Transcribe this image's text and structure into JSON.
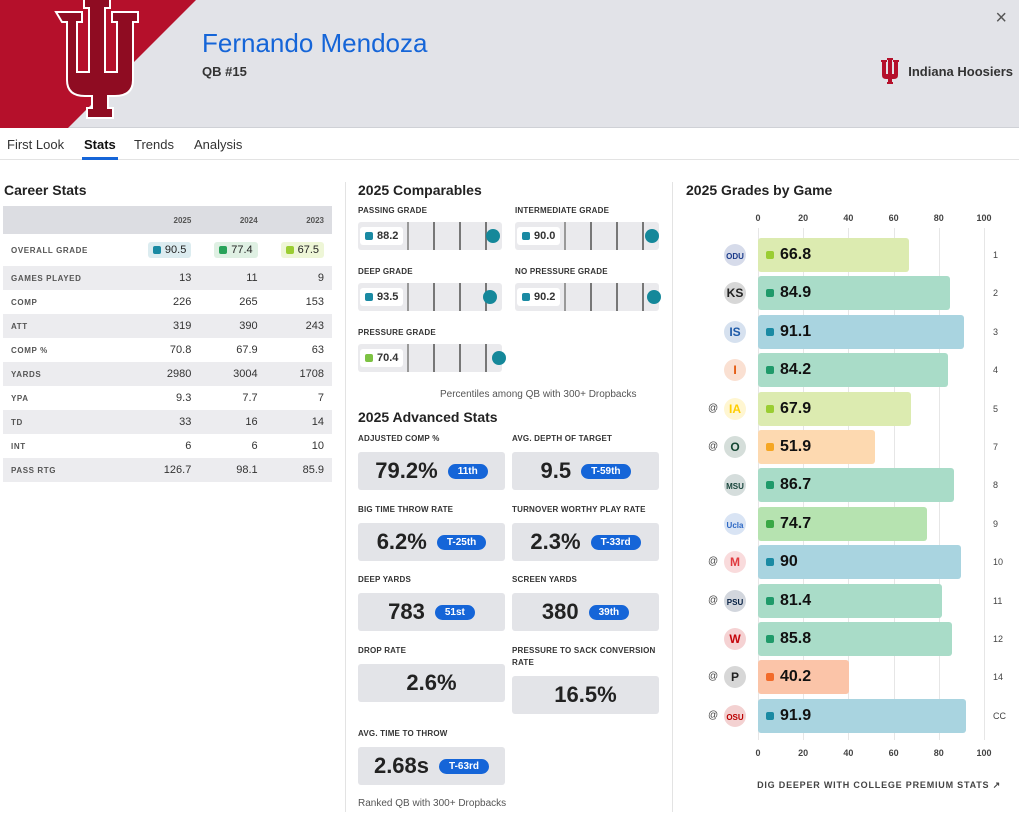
{
  "header": {
    "player_name": "Fernando Mendoza",
    "position": "QB #15",
    "team_name": "Indiana Hoosiers",
    "close": "×",
    "brand_color": "#b5102b"
  },
  "tabs": [
    "First Look",
    "Stats",
    "Trends",
    "Analysis"
  ],
  "active_tab": "Stats",
  "career": {
    "title": "Career Stats",
    "years": [
      "2025",
      "2024",
      "2023"
    ],
    "overall": {
      "label": "OVERALL GRADE",
      "values": [
        "90.5",
        "77.4",
        "67.5"
      ],
      "colors": [
        "#1a8aa3",
        "#29a35a",
        "#9acd32"
      ],
      "bg": [
        "#dcecf0",
        "#dff0e3",
        "#eef6d7"
      ]
    },
    "rows": [
      {
        "label": "GAMES PLAYED",
        "values": [
          "13",
          "11",
          "9"
        ]
      },
      {
        "label": "COMP",
        "values": [
          "226",
          "265",
          "153"
        ]
      },
      {
        "label": "ATT",
        "values": [
          "319",
          "390",
          "243"
        ]
      },
      {
        "label": "COMP %",
        "values": [
          "70.8",
          "67.9",
          "63"
        ]
      },
      {
        "label": "YARDS",
        "values": [
          "2980",
          "3004",
          "1708"
        ]
      },
      {
        "label": "YPA",
        "values": [
          "9.3",
          "7.7",
          "7"
        ]
      },
      {
        "label": "TD",
        "values": [
          "33",
          "16",
          "14"
        ]
      },
      {
        "label": "INT",
        "values": [
          "6",
          "6",
          "10"
        ]
      },
      {
        "label": "PASS RTG",
        "values": [
          "126.7",
          "98.1",
          "85.9"
        ]
      }
    ]
  },
  "comparables": {
    "title": "2025 Comparables",
    "items": [
      {
        "label": "PASSING GRADE",
        "value": "88.2",
        "color": "#1a8aa3",
        "percentile": 0.88
      },
      {
        "label": "INTERMEDIATE GRADE",
        "value": "90.0",
        "color": "#1a8aa3",
        "percentile": 0.9
      },
      {
        "label": "DEEP GRADE",
        "value": "93.5",
        "color": "#1a8aa3",
        "percentile": 0.84
      },
      {
        "label": "NO PRESSURE GRADE",
        "value": "90.2",
        "color": "#1a8aa3",
        "percentile": 0.92
      },
      {
        "label": "PRESSURE GRADE",
        "value": "70.4",
        "color": "#7dc243",
        "percentile": 0.94
      }
    ],
    "note": "Percentiles among QB with 300+ Dropbacks"
  },
  "advanced": {
    "title": "2025 Advanced Stats",
    "items": [
      {
        "label": "ADJUSTED COMP %",
        "value": "79.2%",
        "rank": "11th"
      },
      {
        "label": "AVG. DEPTH OF TARGET",
        "value": "9.5",
        "rank": "T-59th"
      },
      {
        "label": "BIG TIME THROW RATE",
        "value": "6.2%",
        "rank": "T-25th"
      },
      {
        "label": "TURNOVER WORTHY PLAY RATE",
        "value": "2.3%",
        "rank": "T-33rd"
      },
      {
        "label": "DEEP YARDS",
        "value": "783",
        "rank": "51st"
      },
      {
        "label": "SCREEN YARDS",
        "value": "380",
        "rank": "39th"
      },
      {
        "label": "DROP RATE",
        "value": "2.6%",
        "rank": ""
      },
      {
        "label": "PRESSURE TO SACK CONVERSION RATE",
        "value": "16.5%",
        "rank": ""
      },
      {
        "label": "AVG. TIME TO THROW",
        "value": "2.68s",
        "rank": "T-63rd"
      }
    ],
    "note": "Ranked QB with 300+ Dropbacks"
  },
  "games_title": "2025 Grades by Game",
  "chart_data": {
    "type": "bar",
    "orientation": "horizontal",
    "xlim": [
      0,
      100
    ],
    "ticks": [
      "0",
      "20",
      "40",
      "60",
      "80",
      "100"
    ],
    "games": [
      {
        "week": "1",
        "grade": 66.8,
        "label": "66.8",
        "away": false,
        "logo": "ODU",
        "lc": "#1a3a8a"
      },
      {
        "week": "2",
        "grade": 84.9,
        "label": "84.9",
        "away": false,
        "logo": "KS",
        "lc": "#222"
      },
      {
        "week": "3",
        "grade": 91.1,
        "label": "91.1",
        "away": false,
        "logo": "IS",
        "lc": "#1e5aa8"
      },
      {
        "week": "4",
        "grade": 84.2,
        "label": "84.2",
        "away": false,
        "logo": "I",
        "lc": "#e35205"
      },
      {
        "week": "5",
        "grade": 67.9,
        "label": "67.9",
        "away": true,
        "logo": "IA",
        "lc": "#ffcd00"
      },
      {
        "week": "7",
        "grade": 51.9,
        "label": "51.9",
        "away": true,
        "logo": "O",
        "lc": "#154733"
      },
      {
        "week": "8",
        "grade": 86.7,
        "label": "86.7",
        "away": false,
        "logo": "MSU",
        "lc": "#18453b"
      },
      {
        "week": "9",
        "grade": 74.7,
        "label": "74.7",
        "away": false,
        "logo": "Ucla",
        "lc": "#2d68c4"
      },
      {
        "week": "10",
        "grade": 90,
        "label": "90",
        "away": true,
        "logo": "M",
        "lc": "#e03a3e"
      },
      {
        "week": "11",
        "grade": 81.4,
        "label": "81.4",
        "away": true,
        "logo": "PSU",
        "lc": "#041e42"
      },
      {
        "week": "12",
        "grade": 85.8,
        "label": "85.8",
        "away": false,
        "logo": "W",
        "lc": "#c5050c"
      },
      {
        "week": "14",
        "grade": 40.2,
        "label": "40.2",
        "away": true,
        "logo": "P",
        "lc": "#222"
      },
      {
        "week": "CC",
        "grade": 91.9,
        "label": "91.9",
        "away": true,
        "logo": "OSU",
        "lc": "#bb0000"
      }
    ]
  },
  "at_symbol": "@",
  "cta": "DIG DEEPER WITH COLLEGE PREMIUM STATS ↗"
}
